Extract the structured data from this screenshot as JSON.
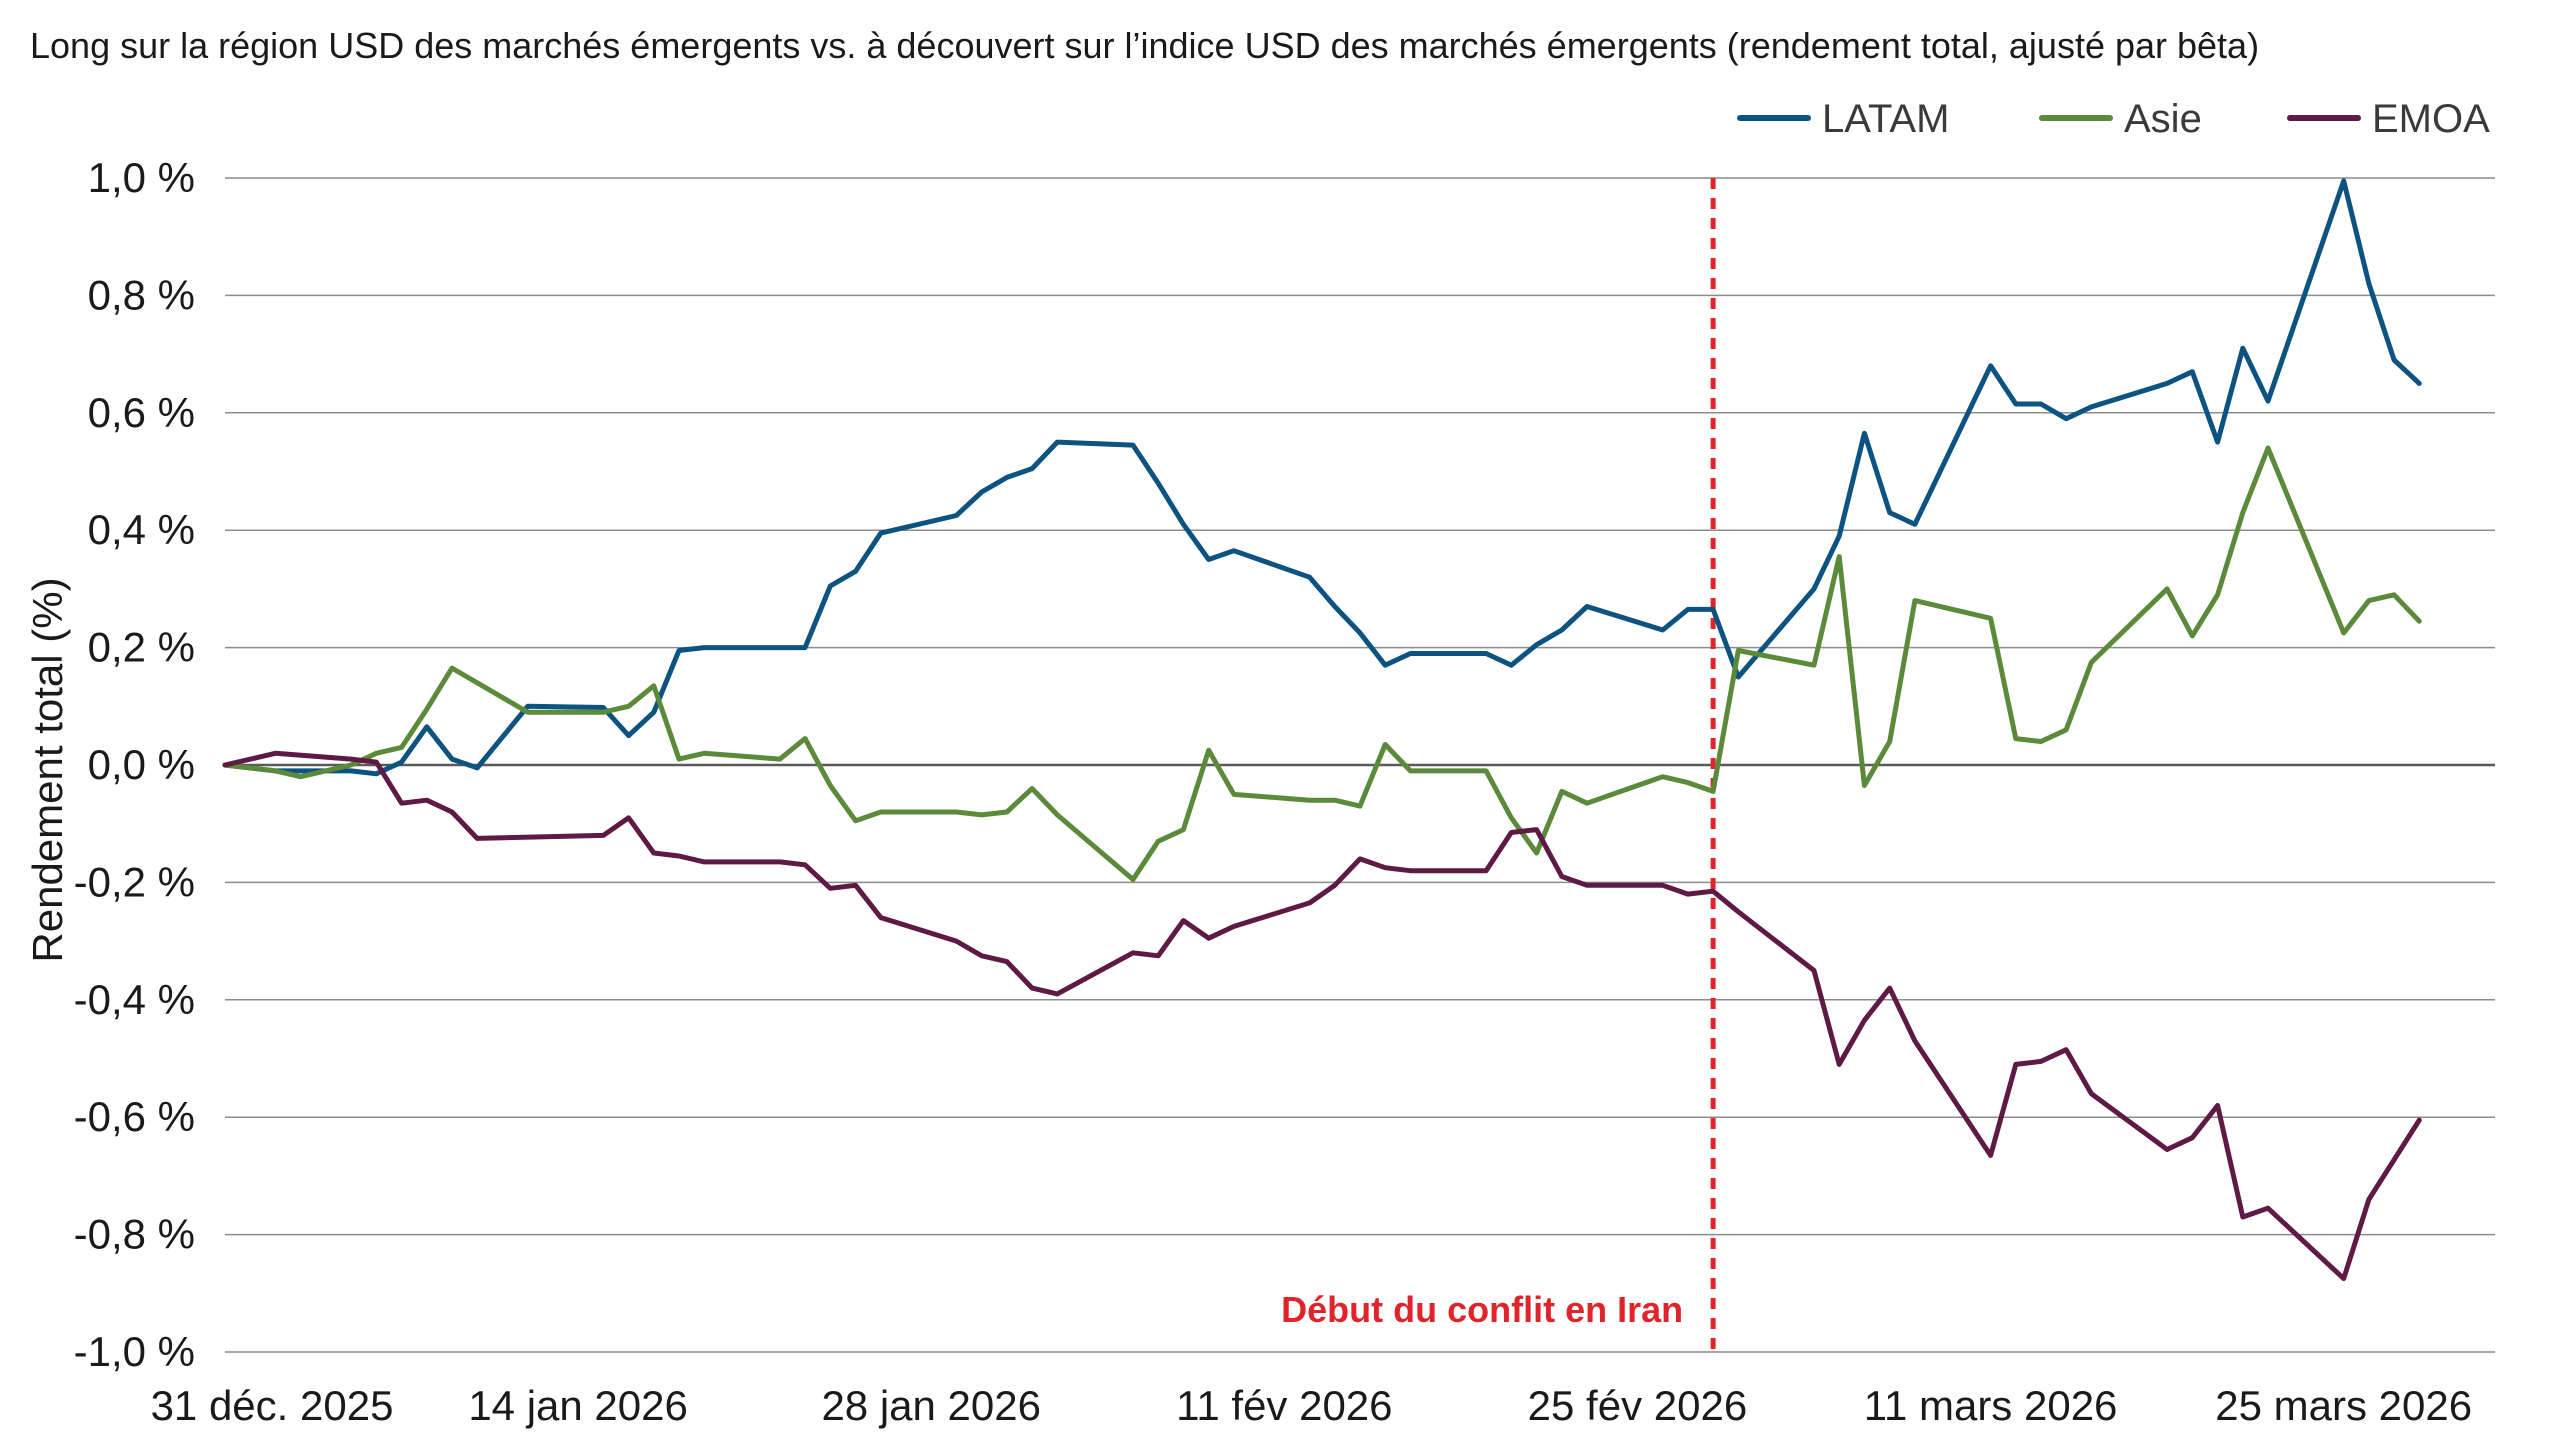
{
  "chart_data": {
    "type": "line",
    "title": "Long sur la région USD des marchés émergents vs. à découvert sur l’indice USD des marchés émergents (rendement total, ajusté par bêta)",
    "ylabel": "Rendement total (%)",
    "xlabel": "",
    "ylim": [
      -1.0,
      1.0
    ],
    "xlim": [
      "2025-12-31",
      "2026-03-31"
    ],
    "grid": true,
    "legend_position": "top-right",
    "y_ticks": [
      {
        "value": 1.0,
        "label": "1,0 %"
      },
      {
        "value": 0.8,
        "label": "0,8 %"
      },
      {
        "value": 0.6,
        "label": "0,6 %"
      },
      {
        "value": 0.4,
        "label": "0,4 %"
      },
      {
        "value": 0.2,
        "label": "0,2 %"
      },
      {
        "value": 0.0,
        "label": "0,0 %"
      },
      {
        "value": -0.2,
        "label": "-0,2 %"
      },
      {
        "value": -0.4,
        "label": "-0,4 %"
      },
      {
        "value": -0.6,
        "label": "-0,6 %"
      },
      {
        "value": -0.8,
        "label": "-0,8 %"
      },
      {
        "value": -1.0,
        "label": "-1,0 %"
      }
    ],
    "x_ticks": [
      {
        "date": "2025-12-31",
        "label": "31 déc. 2025"
      },
      {
        "date": "2026-01-14",
        "label": "14 jan 2026"
      },
      {
        "date": "2026-01-28",
        "label": "28 jan 2026"
      },
      {
        "date": "2026-02-11",
        "label": "11 fév 2026"
      },
      {
        "date": "2026-02-25",
        "label": "25 fév 2026"
      },
      {
        "date": "2026-03-11",
        "label": "11 mars 2026"
      },
      {
        "date": "2026-03-25",
        "label": "25 mars 2026"
      }
    ],
    "annotation": {
      "date": "2026-02-28",
      "label": "Début du conflit en Iran",
      "color": "#e0242b"
    },
    "series": [
      {
        "name": "LATAM",
        "color": "#0d5381",
        "points": [
          [
            "2025-12-31",
            0.0
          ],
          [
            "2026-01-02",
            -0.01
          ],
          [
            "2026-01-05",
            -0.01
          ],
          [
            "2026-01-06",
            -0.015
          ],
          [
            "2026-01-07",
            0.005
          ],
          [
            "2026-01-08",
            0.065
          ],
          [
            "2026-01-09",
            0.01
          ],
          [
            "2026-01-10",
            -0.005
          ],
          [
            "2026-01-12",
            0.1
          ],
          [
            "2026-01-15",
            0.098
          ],
          [
            "2026-01-16",
            0.05
          ],
          [
            "2026-01-17",
            0.09
          ],
          [
            "2026-01-18",
            0.195
          ],
          [
            "2026-01-19",
            0.2
          ],
          [
            "2026-01-22",
            0.2
          ],
          [
            "2026-01-23",
            0.2
          ],
          [
            "2026-01-24",
            0.305
          ],
          [
            "2026-01-25",
            0.33
          ],
          [
            "2026-01-26",
            0.395
          ],
          [
            "2026-01-29",
            0.425
          ],
          [
            "2026-01-30",
            0.465
          ],
          [
            "2026-01-31",
            0.49
          ],
          [
            "2026-02-01",
            0.505
          ],
          [
            "2026-02-02",
            0.55
          ],
          [
            "2026-02-05",
            0.545
          ],
          [
            "2026-02-06",
            0.48
          ],
          [
            "2026-02-07",
            0.41
          ],
          [
            "2026-02-08",
            0.35
          ],
          [
            "2026-02-09",
            0.365
          ],
          [
            "2026-02-12",
            0.32
          ],
          [
            "2026-02-13",
            0.27
          ],
          [
            "2026-02-14",
            0.225
          ],
          [
            "2026-02-15",
            0.17
          ],
          [
            "2026-02-16",
            0.19
          ],
          [
            "2026-02-19",
            0.19
          ],
          [
            "2026-02-20",
            0.17
          ],
          [
            "2026-02-21",
            0.205
          ],
          [
            "2026-02-22",
            0.23
          ],
          [
            "2026-02-23",
            0.27
          ],
          [
            "2026-02-26",
            0.23
          ],
          [
            "2026-02-27",
            0.265
          ],
          [
            "2026-02-28",
            0.265
          ],
          [
            "2026-03-01",
            0.15
          ],
          [
            "2026-03-04",
            0.3
          ],
          [
            "2026-03-05",
            0.39
          ],
          [
            "2026-03-06",
            0.565
          ],
          [
            "2026-03-07",
            0.43
          ],
          [
            "2026-03-08",
            0.41
          ],
          [
            "2026-03-11",
            0.68
          ],
          [
            "2026-03-12",
            0.615
          ],
          [
            "2026-03-13",
            0.615
          ],
          [
            "2026-03-14",
            0.59
          ],
          [
            "2026-03-15",
            0.61
          ],
          [
            "2026-03-18",
            0.65
          ],
          [
            "2026-03-19",
            0.67
          ],
          [
            "2026-03-20",
            0.55
          ],
          [
            "2026-03-21",
            0.71
          ],
          [
            "2026-03-22",
            0.62
          ],
          [
            "2026-03-25",
            0.995
          ],
          [
            "2026-03-26",
            0.82
          ],
          [
            "2026-03-27",
            0.69
          ],
          [
            "2026-03-28",
            0.65
          ]
        ]
      },
      {
        "name": "Asie",
        "color": "#5b8a3a",
        "points": [
          [
            "2025-12-31",
            0.0
          ],
          [
            "2026-01-02",
            -0.01
          ],
          [
            "2026-01-03",
            -0.02
          ],
          [
            "2026-01-05",
            0.0
          ],
          [
            "2026-01-06",
            0.02
          ],
          [
            "2026-01-07",
            0.03
          ],
          [
            "2026-01-08",
            0.095
          ],
          [
            "2026-01-09",
            0.165
          ],
          [
            "2026-01-12",
            0.09
          ],
          [
            "2026-01-15",
            0.09
          ],
          [
            "2026-01-16",
            0.1
          ],
          [
            "2026-01-17",
            0.135
          ],
          [
            "2026-01-18",
            0.01
          ],
          [
            "2026-01-19",
            0.02
          ],
          [
            "2026-01-22",
            0.01
          ],
          [
            "2026-01-23",
            0.045
          ],
          [
            "2026-01-24",
            -0.035
          ],
          [
            "2026-01-25",
            -0.095
          ],
          [
            "2026-01-26",
            -0.08
          ],
          [
            "2026-01-29",
            -0.08
          ],
          [
            "2026-01-30",
            -0.085
          ],
          [
            "2026-01-31",
            -0.08
          ],
          [
            "2026-02-01",
            -0.04
          ],
          [
            "2026-02-02",
            -0.085
          ],
          [
            "2026-02-05",
            -0.195
          ],
          [
            "2026-02-06",
            -0.13
          ],
          [
            "2026-02-07",
            -0.11
          ],
          [
            "2026-02-08",
            0.025
          ],
          [
            "2026-02-09",
            -0.05
          ],
          [
            "2026-02-12",
            -0.06
          ],
          [
            "2026-02-13",
            -0.06
          ],
          [
            "2026-02-14",
            -0.07
          ],
          [
            "2026-02-15",
            0.035
          ],
          [
            "2026-02-16",
            -0.01
          ],
          [
            "2026-02-19",
            -0.01
          ],
          [
            "2026-02-20",
            -0.09
          ],
          [
            "2026-02-21",
            -0.15
          ],
          [
            "2026-02-22",
            -0.045
          ],
          [
            "2026-02-23",
            -0.065
          ],
          [
            "2026-02-26",
            -0.02
          ],
          [
            "2026-02-27",
            -0.03
          ],
          [
            "2026-02-28",
            -0.045
          ],
          [
            "2026-03-01",
            0.195
          ],
          [
            "2026-03-04",
            0.17
          ],
          [
            "2026-03-05",
            0.355
          ],
          [
            "2026-03-06",
            -0.035
          ],
          [
            "2026-03-07",
            0.04
          ],
          [
            "2026-03-08",
            0.28
          ],
          [
            "2026-03-11",
            0.25
          ],
          [
            "2026-03-12",
            0.045
          ],
          [
            "2026-03-13",
            0.04
          ],
          [
            "2026-03-14",
            0.06
          ],
          [
            "2026-03-15",
            0.175
          ],
          [
            "2026-03-18",
            0.3
          ],
          [
            "2026-03-19",
            0.22
          ],
          [
            "2026-03-20",
            0.29
          ],
          [
            "2026-03-21",
            0.43
          ],
          [
            "2026-03-22",
            0.54
          ],
          [
            "2026-03-25",
            0.225
          ],
          [
            "2026-03-26",
            0.28
          ],
          [
            "2026-03-27",
            0.29
          ],
          [
            "2026-03-28",
            0.245
          ]
        ]
      },
      {
        "name": "EMOA",
        "color": "#5e1a45",
        "points": [
          [
            "2025-12-31",
            0.0
          ],
          [
            "2026-01-02",
            0.02
          ],
          [
            "2026-01-05",
            0.01
          ],
          [
            "2026-01-06",
            0.005
          ],
          [
            "2026-01-07",
            -0.065
          ],
          [
            "2026-01-08",
            -0.06
          ],
          [
            "2026-01-09",
            -0.08
          ],
          [
            "2026-01-10",
            -0.125
          ],
          [
            "2026-01-15",
            -0.12
          ],
          [
            "2026-01-16",
            -0.09
          ],
          [
            "2026-01-17",
            -0.15
          ],
          [
            "2026-01-18",
            -0.155
          ],
          [
            "2026-01-19",
            -0.165
          ],
          [
            "2026-01-22",
            -0.165
          ],
          [
            "2026-01-23",
            -0.17
          ],
          [
            "2026-01-24",
            -0.21
          ],
          [
            "2026-01-25",
            -0.205
          ],
          [
            "2026-01-26",
            -0.26
          ],
          [
            "2026-01-29",
            -0.3
          ],
          [
            "2026-01-30",
            -0.325
          ],
          [
            "2026-01-31",
            -0.335
          ],
          [
            "2026-02-01",
            -0.38
          ],
          [
            "2026-02-02",
            -0.39
          ],
          [
            "2026-02-05",
            -0.32
          ],
          [
            "2026-02-06",
            -0.325
          ],
          [
            "2026-02-07",
            -0.265
          ],
          [
            "2026-02-08",
            -0.295
          ],
          [
            "2026-02-09",
            -0.275
          ],
          [
            "2026-02-12",
            -0.235
          ],
          [
            "2026-02-13",
            -0.205
          ],
          [
            "2026-02-14",
            -0.16
          ],
          [
            "2026-02-15",
            -0.175
          ],
          [
            "2026-02-16",
            -0.18
          ],
          [
            "2026-02-19",
            -0.18
          ],
          [
            "2026-02-20",
            -0.115
          ],
          [
            "2026-02-21",
            -0.11
          ],
          [
            "2026-02-22",
            -0.19
          ],
          [
            "2026-02-23",
            -0.205
          ],
          [
            "2026-02-26",
            -0.205
          ],
          [
            "2026-02-27",
            -0.22
          ],
          [
            "2026-02-28",
            -0.215
          ],
          [
            "2026-03-01",
            -0.25
          ],
          [
            "2026-03-04",
            -0.35
          ],
          [
            "2026-03-05",
            -0.51
          ],
          [
            "2026-03-06",
            -0.435
          ],
          [
            "2026-03-07",
            -0.38
          ],
          [
            "2026-03-08",
            -0.47
          ],
          [
            "2026-03-11",
            -0.665
          ],
          [
            "2026-03-12",
            -0.51
          ],
          [
            "2026-03-13",
            -0.505
          ],
          [
            "2026-03-14",
            -0.485
          ],
          [
            "2026-03-15",
            -0.56
          ],
          [
            "2026-03-18",
            -0.655
          ],
          [
            "2026-03-19",
            -0.635
          ],
          [
            "2026-03-20",
            -0.58
          ],
          [
            "2026-03-21",
            -0.77
          ],
          [
            "2026-03-22",
            -0.755
          ],
          [
            "2026-03-25",
            -0.875
          ],
          [
            "2026-03-26",
            -0.74
          ],
          [
            "2026-03-28",
            -0.605
          ]
        ]
      }
    ]
  }
}
